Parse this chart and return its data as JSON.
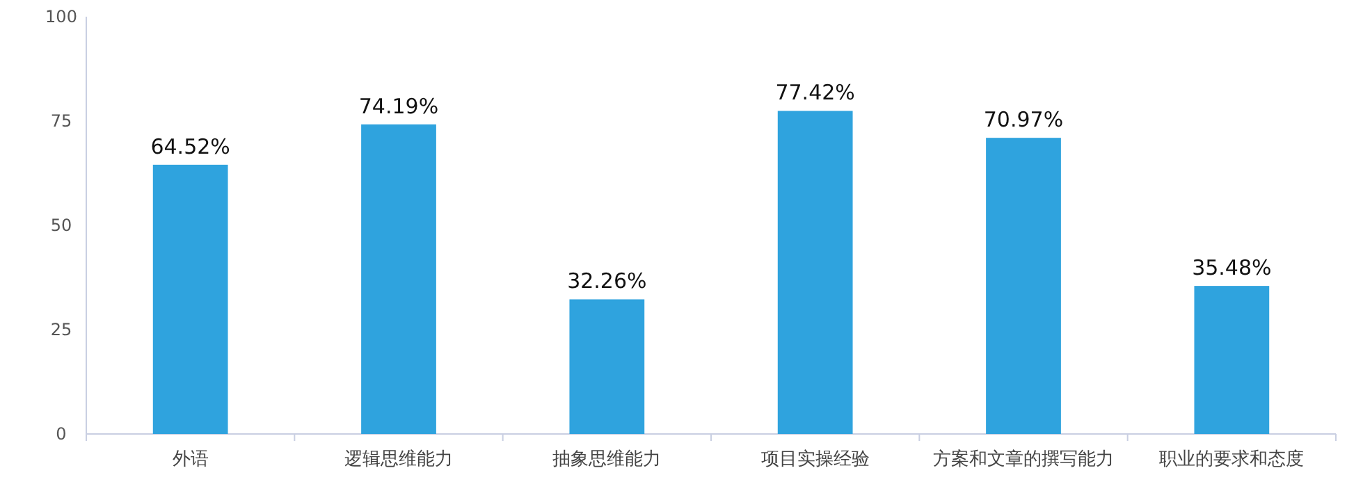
{
  "chart_data": {
    "type": "bar",
    "categories": [
      "外语",
      "逻辑思维能力",
      "抽象思维能力",
      "项目实操经验",
      "方案和文章的撰写能力",
      "职业的要求和态度"
    ],
    "values": [
      64.52,
      74.19,
      32.26,
      77.42,
      70.97,
      35.48
    ],
    "value_labels": [
      "64.52%",
      "74.19%",
      "32.26%",
      "77.42%",
      "70.97%",
      "35.48%"
    ],
    "color": "#2fa3de",
    "ylim": [
      0,
      100
    ],
    "yticks": [
      0,
      25,
      50,
      75,
      100
    ]
  }
}
